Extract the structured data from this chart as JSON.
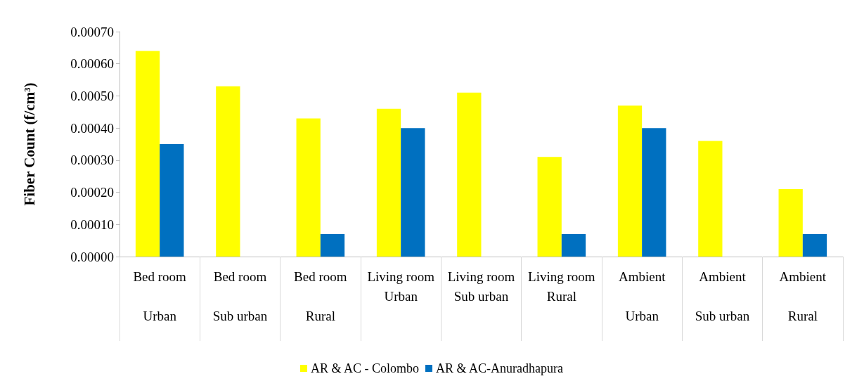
{
  "chart_data": {
    "type": "bar",
    "ylabel": "Fiber Count (f/cm³)",
    "categories": [
      "Bed room\nUrban",
      "Bed room\nSub urban",
      "Bed room\nRural",
      "Living room\nUrban",
      "Living room\nSub urban",
      "Living room\nRural",
      "Ambient\nUrban",
      "Ambient\nSub urban",
      "Ambient\nRural"
    ],
    "series": [
      {
        "name": "AR & AC - Colombo",
        "color": "#ffff00",
        "values": [
          0.00064,
          0.00053,
          0.00043,
          0.00046,
          0.00051,
          0.00031,
          0.00047,
          0.00036,
          0.00021
        ]
      },
      {
        "name": "AR & AC-Anuradhapura",
        "color": "#0070c0",
        "values": [
          0.00035,
          null,
          7e-05,
          0.0004,
          null,
          7e-05,
          0.0004,
          null,
          7e-05
        ]
      }
    ],
    "ylim": [
      0,
      0.0007
    ],
    "yticks": [
      {
        "value": 0,
        "label": "0.00000"
      },
      {
        "value": 0.0001,
        "label": "0.00010"
      },
      {
        "value": 0.0002,
        "label": "0.00020"
      },
      {
        "value": 0.0003,
        "label": "0.00030"
      },
      {
        "value": 0.0004,
        "label": "0.00040"
      },
      {
        "value": 0.0005,
        "label": "0.00050"
      },
      {
        "value": 0.0006,
        "label": "0.00060"
      },
      {
        "value": 0.0007,
        "label": "0.00070"
      }
    ],
    "grid": false,
    "legend": "bottom"
  }
}
